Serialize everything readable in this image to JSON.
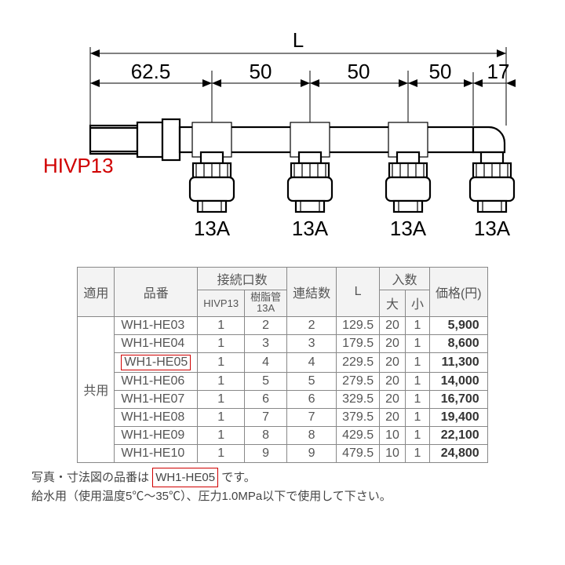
{
  "diagram": {
    "overall_label": "L",
    "dims": [
      "62.5",
      "50",
      "50",
      "50",
      "17"
    ],
    "left_label": "HIVP13",
    "outlet_labels": [
      "13A",
      "13A",
      "13A",
      "13A"
    ]
  },
  "table": {
    "headers": {
      "app": "適用",
      "pn": "品番",
      "conn_group": "接続口数",
      "conn_hivp": "HIVP13",
      "conn_13a": "樹脂管\n13A",
      "links": "連結数",
      "L": "L",
      "qty_group": "入数",
      "qty_big": "大",
      "qty_small": "小",
      "price": "価格(円)"
    },
    "app_label": "共用",
    "rows": [
      {
        "pn": "WH1-HE03",
        "hivp": "1",
        "r13a": "2",
        "links": "2",
        "L": "129.5",
        "big": "20",
        "small": "1",
        "price": "5,900",
        "hl": false
      },
      {
        "pn": "WH1-HE04",
        "hivp": "1",
        "r13a": "3",
        "links": "3",
        "L": "179.5",
        "big": "20",
        "small": "1",
        "price": "8,600",
        "hl": false
      },
      {
        "pn": "WH1-HE05",
        "hivp": "1",
        "r13a": "4",
        "links": "4",
        "L": "229.5",
        "big": "20",
        "small": "1",
        "price": "11,300",
        "hl": true
      },
      {
        "pn": "WH1-HE06",
        "hivp": "1",
        "r13a": "5",
        "links": "5",
        "L": "279.5",
        "big": "20",
        "small": "1",
        "price": "14,000",
        "hl": false
      },
      {
        "pn": "WH1-HE07",
        "hivp": "1",
        "r13a": "6",
        "links": "6",
        "L": "329.5",
        "big": "20",
        "small": "1",
        "price": "16,700",
        "hl": false
      },
      {
        "pn": "WH1-HE08",
        "hivp": "1",
        "r13a": "7",
        "links": "7",
        "L": "379.5",
        "big": "20",
        "small": "1",
        "price": "19,400",
        "hl": false
      },
      {
        "pn": "WH1-HE09",
        "hivp": "1",
        "r13a": "8",
        "links": "8",
        "L": "429.5",
        "big": "10",
        "small": "1",
        "price": "22,100",
        "hl": false
      },
      {
        "pn": "WH1-HE10",
        "hivp": "1",
        "r13a": "9",
        "links": "9",
        "L": "479.5",
        "big": "10",
        "small": "1",
        "price": "24,800",
        "hl": false
      }
    ]
  },
  "footnote": {
    "line1_a": "写真・寸法図の品番は",
    "line1_pn": "WH1-HE05",
    "line1_b": "です。",
    "line2": "給水用（使用温度5℃～35℃）、圧力1.0MPa以下で使用して下さい。"
  }
}
